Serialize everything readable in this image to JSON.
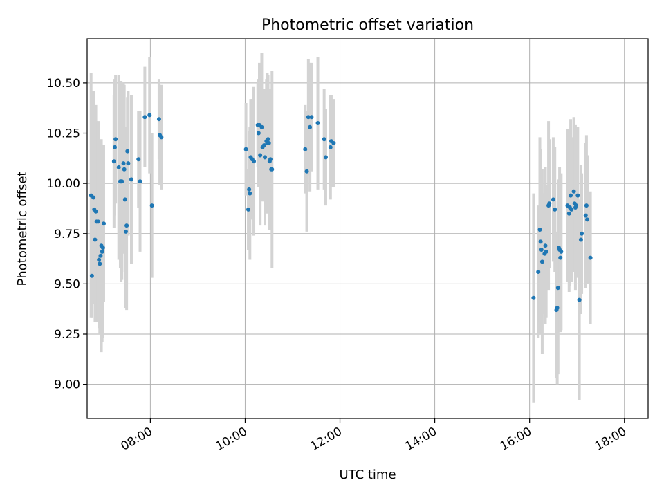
{
  "chart_data": {
    "type": "scatter",
    "title": "Photometric offset variation",
    "xlabel": "UTC time",
    "ylabel": "Photometric offset",
    "xlim": [
      "06:40",
      "18:30"
    ],
    "ylim": [
      8.83,
      10.72
    ],
    "x_ticks": [
      "08:00",
      "10:00",
      "12:00",
      "14:00",
      "16:00",
      "18:00"
    ],
    "y_ticks": [
      "9.00",
      "9.25",
      "9.50",
      "9.75",
      "10.00",
      "10.25",
      "10.50"
    ],
    "grid": true,
    "error_bars": true,
    "colors": {
      "points": "#1f77b4",
      "error_bars": "#d3d3d3",
      "grid": "#b0b0b0"
    },
    "points": [
      {
        "x": "06:45",
        "y": 9.94,
        "err": 0.61
      },
      {
        "x": "06:46",
        "y": 9.54,
        "err": 0.21
      },
      {
        "x": "06:48",
        "y": 9.93,
        "err": 0.53
      },
      {
        "x": "06:49",
        "y": 9.87,
        "err": 0.42
      },
      {
        "x": "06:50",
        "y": 9.72,
        "err": 0.41
      },
      {
        "x": "06:51",
        "y": 9.86,
        "err": 0.53
      },
      {
        "x": "06:52",
        "y": 9.81,
        "err": 0.5
      },
      {
        "x": "06:54",
        "y": 9.81,
        "err": 0.5
      },
      {
        "x": "06:55",
        "y": 9.62,
        "err": 0.34
      },
      {
        "x": "06:56",
        "y": 9.6,
        "err": 0.35
      },
      {
        "x": "06:57",
        "y": 9.64,
        "err": 0.36
      },
      {
        "x": "06:58",
        "y": 9.69,
        "err": 0.53
      },
      {
        "x": "06:59",
        "y": 9.66,
        "err": 0.45
      },
      {
        "x": "07:00",
        "y": 9.68,
        "err": 0.45
      },
      {
        "x": "07:01",
        "y": 9.8,
        "err": 0.39
      },
      {
        "x": "07:14",
        "y": 10.11,
        "err": 0.33
      },
      {
        "x": "07:15",
        "y": 10.18,
        "err": 0.34
      },
      {
        "x": "07:16",
        "y": 10.22,
        "err": 0.32
      },
      {
        "x": "07:20",
        "y": 10.08,
        "err": 0.46
      },
      {
        "x": "07:22",
        "y": 10.01,
        "err": 0.43
      },
      {
        "x": "07:23",
        "y": 10.01,
        "err": 0.5
      },
      {
        "x": "07:24",
        "y": 10.01,
        "err": 0.49
      },
      {
        "x": "07:26",
        "y": 10.1,
        "err": 0.4
      },
      {
        "x": "07:27",
        "y": 10.07,
        "err": 0.42
      },
      {
        "x": "07:28",
        "y": 9.92,
        "err": 0.36
      },
      {
        "x": "07:29",
        "y": 9.76,
        "err": 0.38
      },
      {
        "x": "07:30",
        "y": 9.79,
        "err": 0.42
      },
      {
        "x": "07:31",
        "y": 10.16,
        "err": 0.27
      },
      {
        "x": "07:32",
        "y": 10.1,
        "err": 0.36
      },
      {
        "x": "07:36",
        "y": 10.02,
        "err": 0.42
      },
      {
        "x": "07:45",
        "y": 10.12,
        "err": 0.24
      },
      {
        "x": "07:47",
        "y": 10.01,
        "err": 0.35
      },
      {
        "x": "07:53",
        "y": 10.33,
        "err": 0.25
      },
      {
        "x": "07:59",
        "y": 10.34,
        "err": 0.29
      },
      {
        "x": "08:02",
        "y": 9.89,
        "err": 0.36
      },
      {
        "x": "08:11",
        "y": 10.32,
        "err": 0.2
      },
      {
        "x": "08:12",
        "y": 10.24,
        "err": 0.25
      },
      {
        "x": "08:14",
        "y": 10.23,
        "err": 0.26
      },
      {
        "x": "10:01",
        "y": 10.17,
        "err": 0.23
      },
      {
        "x": "10:04",
        "y": 9.87,
        "err": 0.2
      },
      {
        "x": "10:05",
        "y": 9.97,
        "err": 0.29
      },
      {
        "x": "10:06",
        "y": 9.95,
        "err": 0.33
      },
      {
        "x": "10:07",
        "y": 10.13,
        "err": 0.29
      },
      {
        "x": "10:09",
        "y": 10.12,
        "err": 0.3
      },
      {
        "x": "10:11",
        "y": 10.11,
        "err": 0.37
      },
      {
        "x": "10:16",
        "y": 10.29,
        "err": 0.21
      },
      {
        "x": "10:17",
        "y": 10.25,
        "err": 0.27
      },
      {
        "x": "10:18",
        "y": 10.29,
        "err": 0.31
      },
      {
        "x": "10:19",
        "y": 10.14,
        "err": 0.35
      },
      {
        "x": "10:21",
        "y": 10.28,
        "err": 0.37
      },
      {
        "x": "10:22",
        "y": 10.18,
        "err": 0.25
      },
      {
        "x": "10:24",
        "y": 10.19,
        "err": 0.28
      },
      {
        "x": "10:25",
        "y": 10.13,
        "err": 0.34
      },
      {
        "x": "10:27",
        "y": 10.21,
        "err": 0.31
      },
      {
        "x": "10:28",
        "y": 10.2,
        "err": 0.35
      },
      {
        "x": "10:29",
        "y": 10.22,
        "err": 0.32
      },
      {
        "x": "10:30",
        "y": 10.2,
        "err": 0.24
      },
      {
        "x": "10:31",
        "y": 10.11,
        "err": 0.34
      },
      {
        "x": "10:32",
        "y": 10.12,
        "err": 0.35
      },
      {
        "x": "10:33",
        "y": 10.07,
        "err": 0.28
      },
      {
        "x": "10:34",
        "y": 10.07,
        "err": 0.49
      },
      {
        "x": "11:16",
        "y": 10.17,
        "err": 0.22
      },
      {
        "x": "11:18",
        "y": 10.06,
        "err": 0.3
      },
      {
        "x": "11:20",
        "y": 10.33,
        "err": 0.29
      },
      {
        "x": "11:22",
        "y": 10.28,
        "err": 0.32
      },
      {
        "x": "11:24",
        "y": 10.33,
        "err": 0.27
      },
      {
        "x": "11:32",
        "y": 10.3,
        "err": 0.33
      },
      {
        "x": "11:40",
        "y": 10.22,
        "err": 0.25
      },
      {
        "x": "11:42",
        "y": 10.13,
        "err": 0.24
      },
      {
        "x": "11:48",
        "y": 10.18,
        "err": 0.26
      },
      {
        "x": "11:49",
        "y": 10.21,
        "err": 0.23
      },
      {
        "x": "11:52",
        "y": 10.2,
        "err": 0.22
      },
      {
        "x": "16:05",
        "y": 9.43,
        "err": 0.52
      },
      {
        "x": "16:11",
        "y": 9.56,
        "err": 0.33
      },
      {
        "x": "16:13",
        "y": 9.77,
        "err": 0.46
      },
      {
        "x": "16:14",
        "y": 9.71,
        "err": 0.46
      },
      {
        "x": "16:16",
        "y": 9.61,
        "err": 0.46
      },
      {
        "x": "16:15",
        "y": 9.67,
        "err": 0.38
      },
      {
        "x": "16:19",
        "y": 9.65,
        "err": 0.3
      },
      {
        "x": "16:20",
        "y": 9.69,
        "err": 0.39
      },
      {
        "x": "16:21",
        "y": 9.66,
        "err": 0.33
      },
      {
        "x": "16:24",
        "y": 9.89,
        "err": 0.42
      },
      {
        "x": "16:25",
        "y": 9.9,
        "err": 0.32
      },
      {
        "x": "16:30",
        "y": 9.92,
        "err": 0.31
      },
      {
        "x": "16:32",
        "y": 9.87,
        "err": 0.31
      },
      {
        "x": "16:34",
        "y": 9.37,
        "err": 0.34
      },
      {
        "x": "16:35",
        "y": 9.38,
        "err": 0.38
      },
      {
        "x": "16:36",
        "y": 9.48,
        "err": 0.43
      },
      {
        "x": "16:37",
        "y": 9.68,
        "err": 0.34
      },
      {
        "x": "16:38",
        "y": 9.67,
        "err": 0.41
      },
      {
        "x": "16:39",
        "y": 9.63,
        "err": 0.37
      },
      {
        "x": "16:40",
        "y": 9.66,
        "err": 0.39
      },
      {
        "x": "16:48",
        "y": 9.89,
        "err": 0.38
      },
      {
        "x": "16:50",
        "y": 9.85,
        "err": 0.39
      },
      {
        "x": "16:51",
        "y": 9.88,
        "err": 0.39
      },
      {
        "x": "16:52",
        "y": 9.94,
        "err": 0.38
      },
      {
        "x": "16:53",
        "y": 9.87,
        "err": 0.36
      },
      {
        "x": "16:56",
        "y": 9.96,
        "err": 0.37
      },
      {
        "x": "16:57",
        "y": 9.9,
        "err": 0.34
      },
      {
        "x": "16:58",
        "y": 9.88,
        "err": 0.41
      },
      {
        "x": "16:59",
        "y": 9.89,
        "err": 0.36
      },
      {
        "x": "17:01",
        "y": 9.94,
        "err": 0.34
      },
      {
        "x": "17:03",
        "y": 9.42,
        "err": 0.5
      },
      {
        "x": "17:05",
        "y": 9.72,
        "err": 0.37
      },
      {
        "x": "17:06",
        "y": 9.75,
        "err": 0.3
      },
      {
        "x": "17:11",
        "y": 9.84,
        "err": 0.36
      },
      {
        "x": "17:12",
        "y": 9.89,
        "err": 0.35
      },
      {
        "x": "17:13",
        "y": 9.82,
        "err": 0.32
      },
      {
        "x": "17:17",
        "y": 9.63,
        "err": 0.33
      }
    ]
  }
}
